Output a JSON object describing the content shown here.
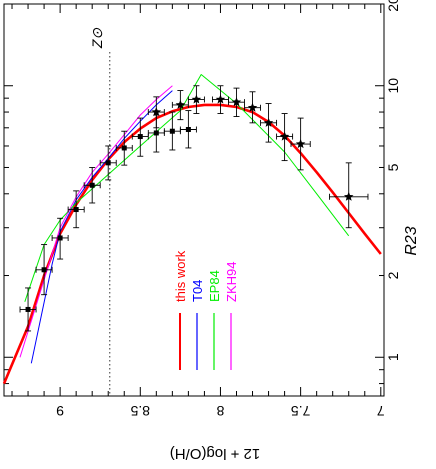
{
  "chart_data": {
    "type": "line",
    "orientation": "rotated-90",
    "xlabel": "12 + log(O/H)",
    "ylabel": "R23",
    "xscale": "linear",
    "yscale": "log",
    "xlim": [
      9.35,
      6.98
    ],
    "ylim": [
      0.72,
      20
    ],
    "xticks": [
      {
        "value": 9,
        "label": "9"
      },
      {
        "value": 8.5,
        "label": "8.5"
      },
      {
        "value": 8,
        "label": "8"
      },
      {
        "value": 7.5,
        "label": "7.5"
      },
      {
        "value": 7,
        "label": "7"
      }
    ],
    "yticks": [
      {
        "value": 1,
        "label": "1"
      },
      {
        "value": 2,
        "label": "2"
      },
      {
        "value": 5,
        "label": "5"
      },
      {
        "value": 10,
        "label": "10"
      },
      {
        "value": 20,
        "label": "20"
      }
    ],
    "grid": false,
    "legend_position": "center-left",
    "annotations": [
      {
        "text": "Z⊙",
        "x": 8.69,
        "kind": "vertical-dotted-line"
      }
    ],
    "series": [
      {
        "name": "this work",
        "color": "#ff0000",
        "style": "line",
        "points": [
          [
            9.35,
            0.8
          ],
          [
            9.2,
            1.3
          ],
          [
            9.1,
            2.0
          ],
          [
            9.0,
            2.85
          ],
          [
            8.9,
            3.65
          ],
          [
            8.8,
            4.5
          ],
          [
            8.7,
            5.35
          ],
          [
            8.6,
            6.2
          ],
          [
            8.5,
            6.95
          ],
          [
            8.4,
            7.6
          ],
          [
            8.3,
            8.05
          ],
          [
            8.2,
            8.35
          ],
          [
            8.1,
            8.5
          ],
          [
            8.0,
            8.5
          ],
          [
            7.9,
            8.35
          ],
          [
            7.8,
            8.0
          ],
          [
            7.7,
            7.35
          ],
          [
            7.6,
            6.55
          ],
          [
            7.5,
            5.65
          ],
          [
            7.4,
            4.8
          ],
          [
            7.3,
            4.05
          ],
          [
            7.2,
            3.4
          ],
          [
            7.1,
            2.85
          ],
          [
            7.0,
            2.4
          ]
        ]
      },
      {
        "name": "T04",
        "color": "#0000ff",
        "style": "line",
        "points": [
          [
            9.18,
            0.95
          ],
          [
            9.12,
            1.4
          ],
          [
            9.05,
            2.2
          ],
          [
            9.0,
            2.9
          ],
          [
            8.9,
            3.8
          ],
          [
            8.8,
            4.6
          ],
          [
            8.7,
            5.4
          ],
          [
            8.6,
            6.4
          ],
          [
            8.5,
            7.4
          ],
          [
            8.4,
            8.5
          ],
          [
            8.3,
            9.6
          ]
        ]
      },
      {
        "name": "EP84",
        "color": "#00ee00",
        "style": "line",
        "points": [
          [
            9.22,
            1.6
          ],
          [
            9.1,
            2.6
          ],
          [
            9.0,
            3.2
          ],
          [
            8.9,
            3.7
          ],
          [
            8.5,
            6.0
          ],
          [
            8.25,
            8.1
          ],
          [
            8.12,
            11.0
          ],
          [
            7.9,
            8.6
          ],
          [
            7.6,
            5.7
          ],
          [
            7.4,
            4.0
          ],
          [
            7.2,
            2.8
          ]
        ]
      },
      {
        "name": "ZKH94",
        "color": "#ff00ff",
        "style": "line",
        "points": [
          [
            9.25,
            1.0
          ],
          [
            9.15,
            1.55
          ],
          [
            9.05,
            2.4
          ],
          [
            9.0,
            3.0
          ],
          [
            8.9,
            3.9
          ],
          [
            8.8,
            4.8
          ],
          [
            8.7,
            5.6
          ],
          [
            8.6,
            6.6
          ],
          [
            8.5,
            7.8
          ],
          [
            8.4,
            8.9
          ],
          [
            8.3,
            10.0
          ]
        ]
      },
      {
        "name": "",
        "color": "#000000",
        "style": "squares-with-errorbars",
        "points": [
          {
            "x": 9.2,
            "y": 1.5,
            "xerr": 0.05,
            "yerr_lo": 0.25,
            "yerr_hi": 0.3
          },
          {
            "x": 9.1,
            "y": 2.1,
            "xerr": 0.05,
            "yerr_lo": 0.4,
            "yerr_hi": 0.5
          },
          {
            "x": 9.0,
            "y": 2.75,
            "xerr": 0.05,
            "yerr_lo": 0.45,
            "yerr_hi": 0.5
          },
          {
            "x": 8.9,
            "y": 3.5,
            "xerr": 0.05,
            "yerr_lo": 0.5,
            "yerr_hi": 0.6
          },
          {
            "x": 8.8,
            "y": 4.3,
            "xerr": 0.05,
            "yerr_lo": 0.6,
            "yerr_hi": 0.7
          },
          {
            "x": 8.7,
            "y": 5.2,
            "xerr": 0.05,
            "yerr_lo": 0.7,
            "yerr_hi": 0.8
          },
          {
            "x": 8.6,
            "y": 5.9,
            "xerr": 0.05,
            "yerr_lo": 0.8,
            "yerr_hi": 0.9
          },
          {
            "x": 8.5,
            "y": 6.5,
            "xerr": 0.05,
            "yerr_lo": 1.0,
            "yerr_hi": 1.1
          },
          {
            "x": 8.4,
            "y": 6.7,
            "xerr": 0.05,
            "yerr_lo": 1.0,
            "yerr_hi": 1.1
          },
          {
            "x": 8.3,
            "y": 6.8,
            "xerr": 0.05,
            "yerr_lo": 1.0,
            "yerr_hi": 1.2
          },
          {
            "x": 8.2,
            "y": 6.9,
            "xerr": 0.05,
            "yerr_lo": 1.0,
            "yerr_hi": 1.2
          }
        ]
      },
      {
        "name": "",
        "color": "#000000",
        "style": "stars-with-errorbars",
        "points": [
          {
            "x": 8.4,
            "y": 8.0,
            "xerr": 0.05,
            "yerr_lo": 1.0,
            "yerr_hi": 1.1
          },
          {
            "x": 8.25,
            "y": 8.5,
            "xerr": 0.05,
            "yerr_lo": 1.0,
            "yerr_hi": 1.1
          },
          {
            "x": 8.15,
            "y": 8.9,
            "xerr": 0.05,
            "yerr_lo": 1.0,
            "yerr_hi": 1.1
          },
          {
            "x": 8.0,
            "y": 8.9,
            "xerr": 0.05,
            "yerr_lo": 1.0,
            "yerr_hi": 1.1
          },
          {
            "x": 7.9,
            "y": 8.7,
            "xerr": 0.05,
            "yerr_lo": 1.0,
            "yerr_hi": 1.1
          },
          {
            "x": 7.8,
            "y": 8.3,
            "xerr": 0.05,
            "yerr_lo": 1.0,
            "yerr_hi": 1.2
          },
          {
            "x": 7.7,
            "y": 7.3,
            "xerr": 0.05,
            "yerr_lo": 1.1,
            "yerr_hi": 1.3
          },
          {
            "x": 7.6,
            "y": 6.5,
            "xerr": 0.05,
            "yerr_lo": 1.2,
            "yerr_hi": 1.4
          },
          {
            "x": 7.5,
            "y": 6.1,
            "xerr": 0.06,
            "yerr_lo": 1.2,
            "yerr_hi": 1.5
          },
          {
            "x": 7.2,
            "y": 3.9,
            "xerr": 0.12,
            "yerr_lo": 0.9,
            "yerr_hi": 1.3
          }
        ]
      }
    ]
  }
}
